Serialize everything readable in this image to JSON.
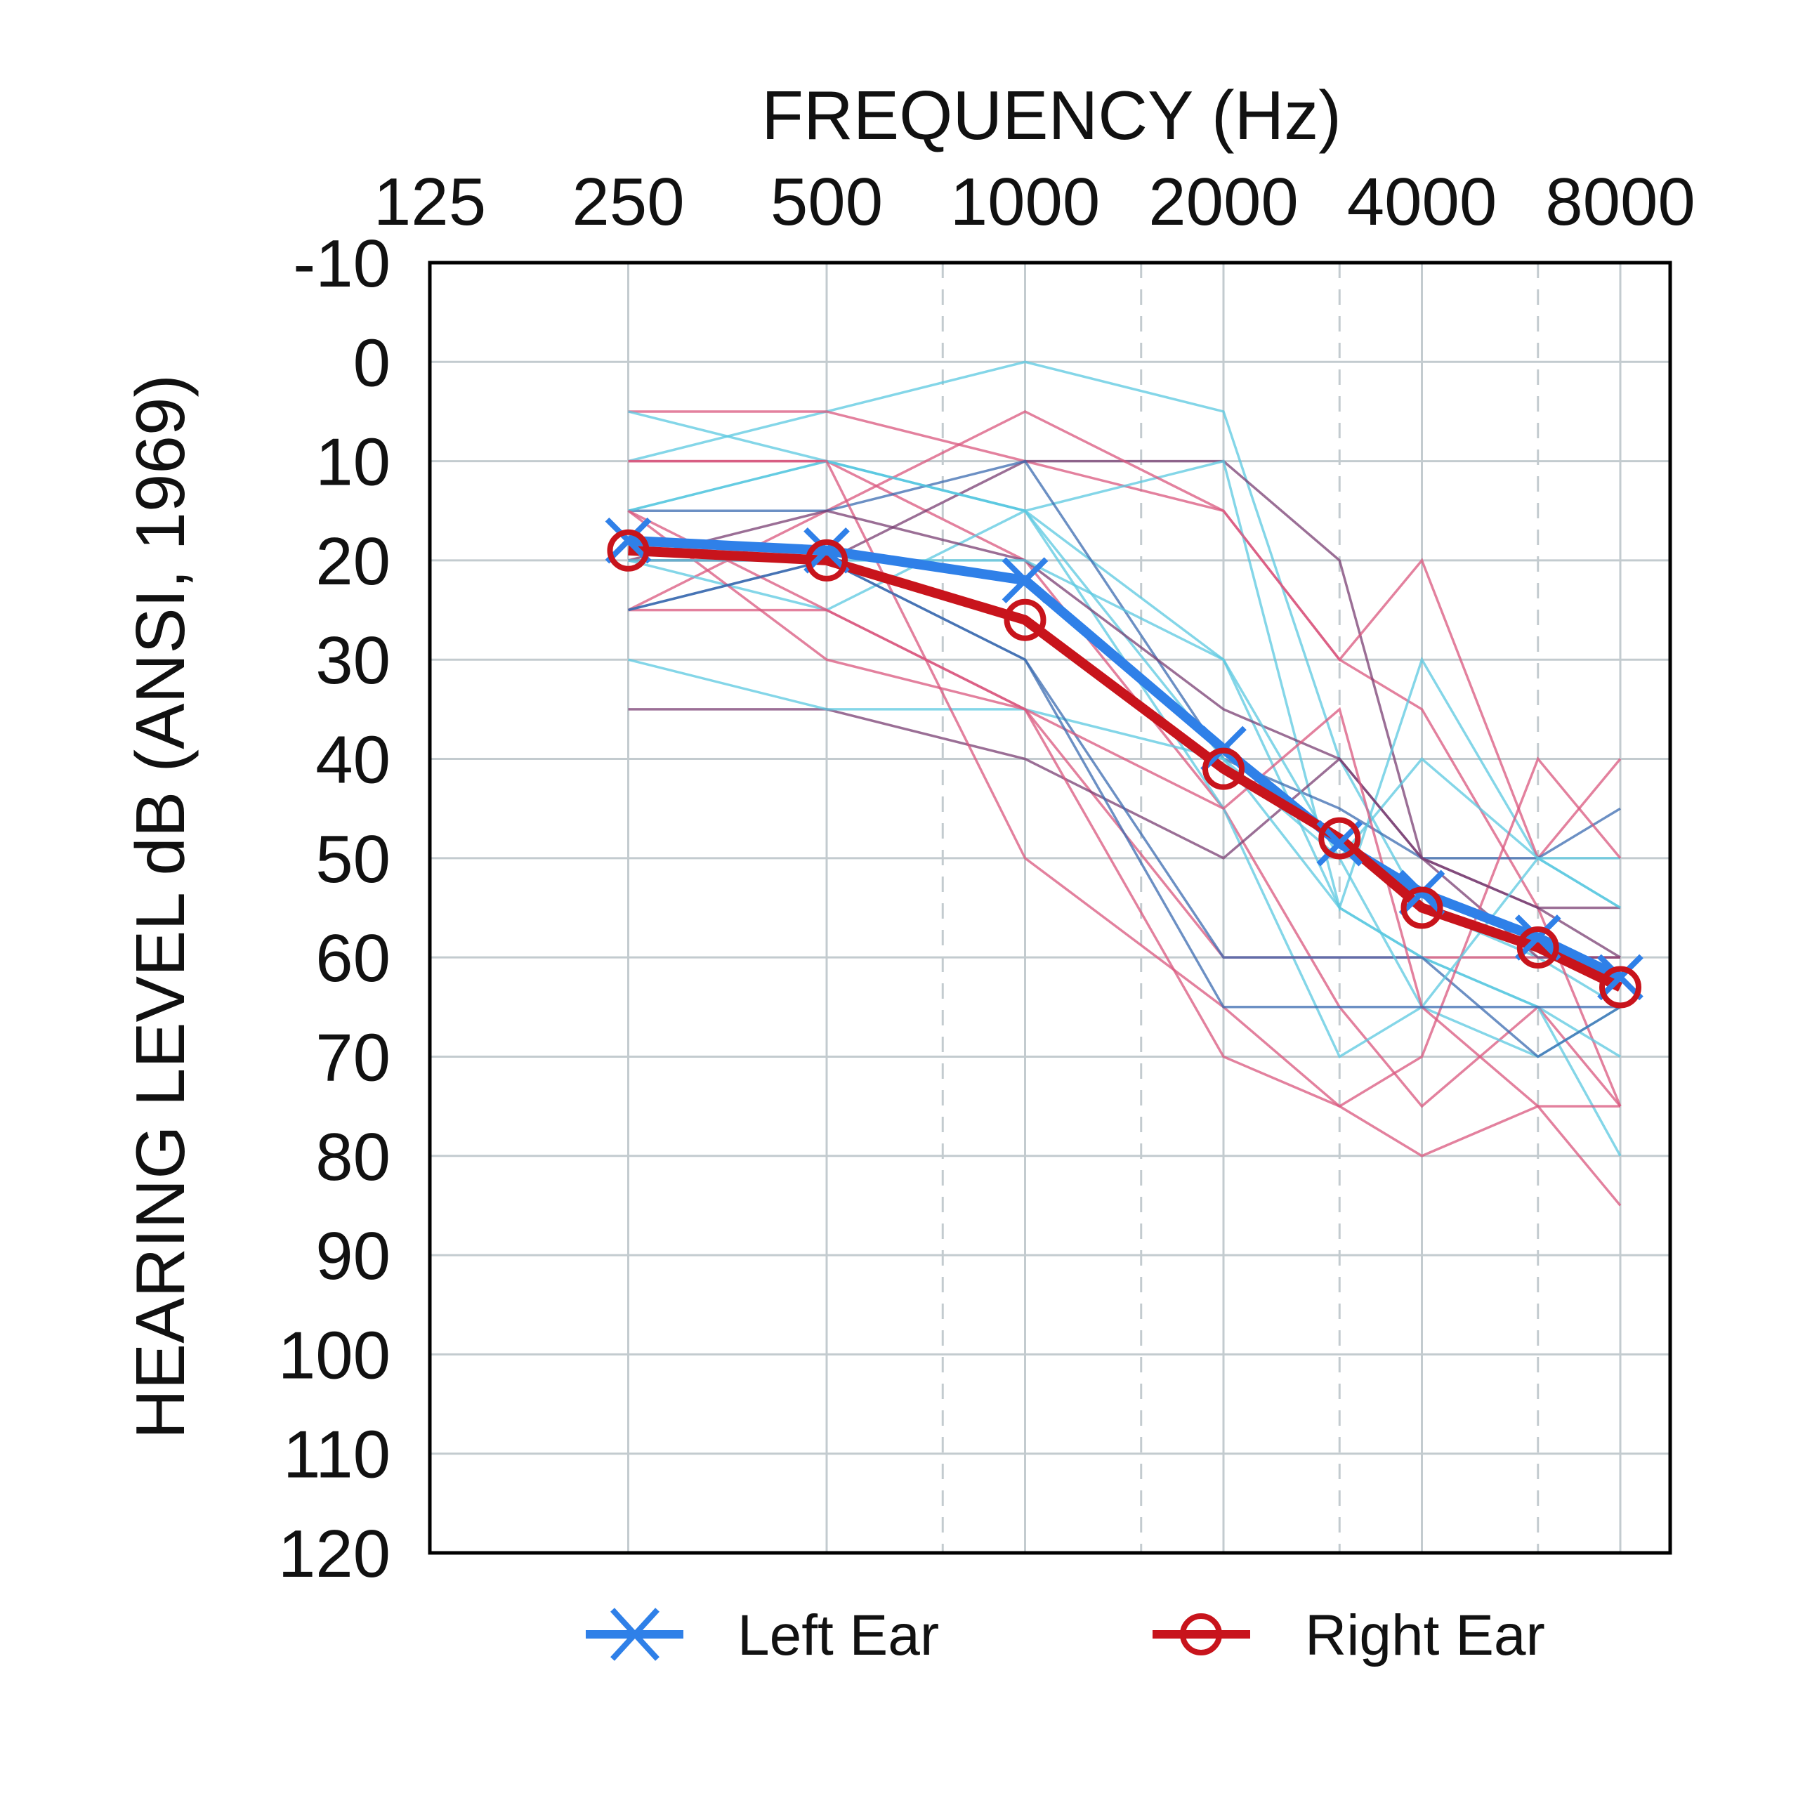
{
  "chart_data": {
    "type": "line",
    "title": "FREQUENCY (Hz)",
    "xlabel": "FREQUENCY (Hz)",
    "ylabel": "HEARING LEVEL dB (ANSI, 1969)",
    "x_scale": "log2",
    "x_tick_labels": [
      "125",
      "250",
      "500",
      "1000",
      "2000",
      "4000",
      "8000"
    ],
    "x_ticks": [
      125,
      250,
      500,
      1000,
      2000,
      4000,
      8000
    ],
    "x_dashed_gridlines": [
      750,
      1500,
      3000,
      6000
    ],
    "y_tick_labels": [
      "-10",
      "0",
      "10",
      "20",
      "30",
      "40",
      "50",
      "60",
      "70",
      "80",
      "90",
      "100",
      "110",
      "120"
    ],
    "ylim": [
      -10,
      120
    ],
    "y_inverted": true,
    "grid": true,
    "legend_position": "bottom",
    "x": [
      250,
      500,
      1000,
      2000,
      3000,
      4000,
      6000,
      8000
    ],
    "series": [
      {
        "name": "Left Ear",
        "color": "#2f80e8",
        "marker": "x",
        "values": [
          18,
          19,
          22,
          39,
          48.5,
          53.5,
          58,
          62
        ]
      },
      {
        "name": "Right Ear",
        "color": "#c8141c",
        "marker": "circle",
        "values": [
          19,
          20,
          26,
          41,
          48,
          55,
          59,
          63
        ]
      }
    ],
    "individual_audiograms": [
      {
        "color": "#5bc8e0",
        "values": [
          10,
          5,
          0,
          5,
          40,
          55,
          60,
          65
        ]
      },
      {
        "color": "#d9577d",
        "values": [
          5,
          5,
          10,
          15,
          30,
          35,
          55,
          75
        ]
      },
      {
        "color": "#5bc8e0",
        "values": [
          5,
          10,
          15,
          30,
          55,
          60,
          65,
          70
        ]
      },
      {
        "color": "#d9577d",
        "values": [
          10,
          10,
          20,
          45,
          65,
          75,
          65,
          75
        ]
      },
      {
        "color": "#7a3f73",
        "values": [
          20,
          20,
          10,
          10,
          20,
          50,
          55,
          60
        ]
      },
      {
        "color": "#5bc8e0",
        "values": [
          15,
          10,
          15,
          10,
          55,
          30,
          50,
          55
        ]
      },
      {
        "color": "#d9577d",
        "values": [
          25,
          15,
          5,
          15,
          30,
          20,
          50,
          40
        ]
      },
      {
        "color": "#3b6bb0",
        "values": [
          15,
          15,
          10,
          40,
          45,
          50,
          50,
          45
        ]
      },
      {
        "color": "#5bc8e0",
        "values": [
          20,
          25,
          15,
          45,
          70,
          65,
          70,
          65
        ]
      },
      {
        "color": "#d9577d",
        "values": [
          25,
          25,
          35,
          60,
          60,
          60,
          60,
          60
        ]
      },
      {
        "color": "#7a3f73",
        "values": [
          35,
          35,
          40,
          50,
          40,
          50,
          60,
          60
        ]
      },
      {
        "color": "#5bc8e0",
        "values": [
          30,
          35,
          35,
          40,
          55,
          60,
          65,
          80
        ]
      },
      {
        "color": "#d9577d",
        "values": [
          15,
          30,
          35,
          70,
          75,
          80,
          75,
          85
        ]
      },
      {
        "color": "#3b6bb0",
        "values": [
          25,
          20,
          30,
          60,
          60,
          60,
          70,
          65
        ]
      },
      {
        "color": "#5bc8e0",
        "values": [
          15,
          10,
          15,
          40,
          50,
          40,
          50,
          50
        ]
      },
      {
        "color": "#d9577d",
        "values": [
          10,
          10,
          50,
          65,
          75,
          70,
          40,
          50
        ]
      },
      {
        "color": "#7a3f73",
        "values": [
          20,
          15,
          20,
          35,
          40,
          50,
          55,
          55
        ]
      },
      {
        "color": "#5bc8e0",
        "values": [
          20,
          20,
          20,
          30,
          50,
          65,
          50,
          55
        ]
      },
      {
        "color": "#d9577d",
        "values": [
          15,
          25,
          35,
          45,
          35,
          65,
          75,
          75
        ]
      },
      {
        "color": "#3b6bb0",
        "values": [
          25,
          20,
          30,
          65,
          65,
          65,
          65,
          65
        ]
      }
    ]
  }
}
